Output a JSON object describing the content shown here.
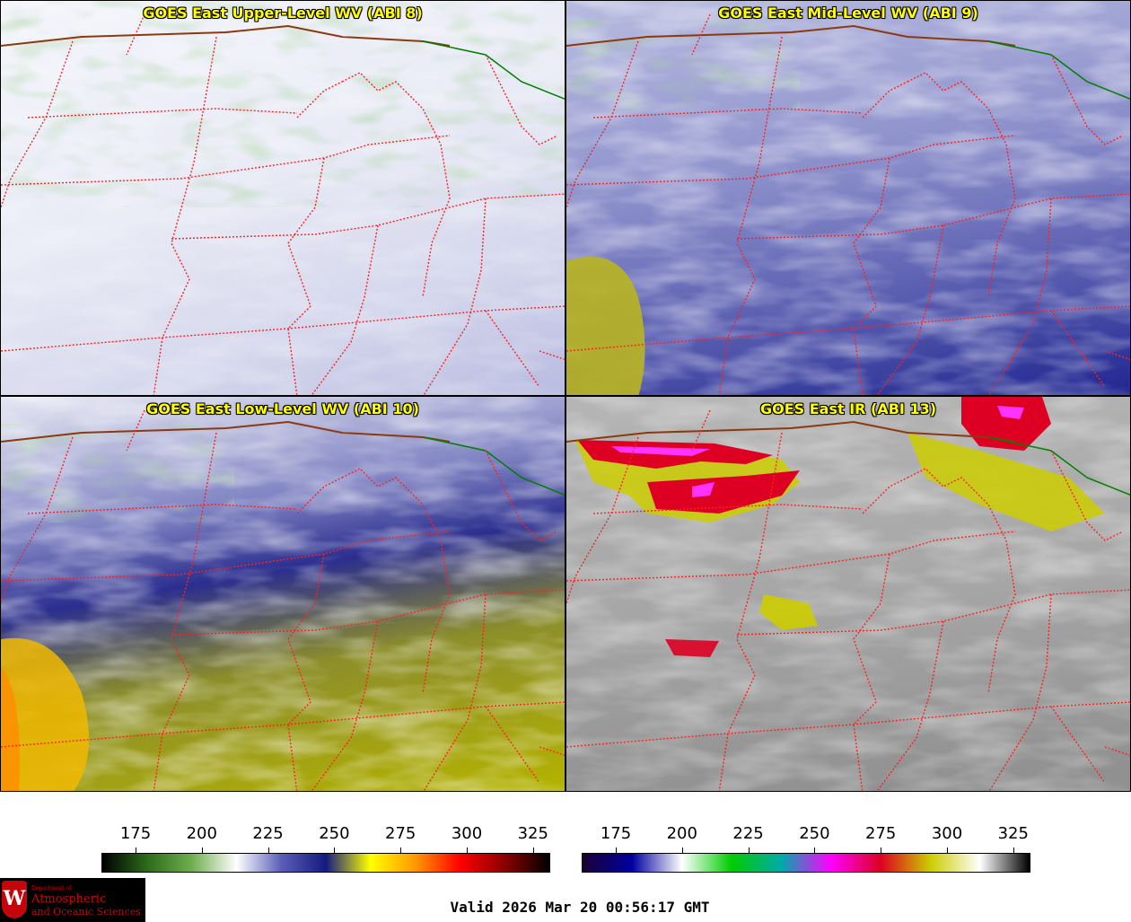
{
  "panels": [
    {
      "title": "GOES East Upper-Level WV (ABI 8)"
    },
    {
      "title": "GOES East Mid-Level WV (ABI 9)"
    },
    {
      "title": "GOES East Low-Level WV (ABI 10)"
    },
    {
      "title": "GOES East IR (ABI 13)"
    }
  ],
  "wv_scale": {
    "ticks": [
      "175",
      "200",
      "225",
      "250",
      "275",
      "300",
      "325"
    ],
    "colors": [
      "#000000",
      "#2b6b1a",
      "#6fae4d",
      "#ffffff",
      "#5b5fb8",
      "#141a80",
      "#ffff00",
      "#ff9900",
      "#ff0000",
      "#8b0000",
      "#000000"
    ]
  },
  "ir_scale": {
    "ticks": [
      "175",
      "200",
      "225",
      "250",
      "275",
      "300",
      "325"
    ],
    "colors": [
      "#1a0033",
      "#0000a0",
      "#ffffff",
      "#00cc00",
      "#00aaaa",
      "#ff00ff",
      "#dd0022",
      "#cccc00",
      "#ffffff",
      "#000000"
    ]
  },
  "logo": {
    "dept": "Department of",
    "line1": "Atmospheric",
    "line2": "and Oceanic Sciences",
    "crest": "W"
  },
  "valid_text": "Valid 2026 Mar 20 00:56:17 GMT",
  "colors": {
    "title_text": "#ffff00",
    "state_borders": "#ff2020",
    "country_border": "#8b3a0f",
    "lake_shore": "#008000"
  }
}
